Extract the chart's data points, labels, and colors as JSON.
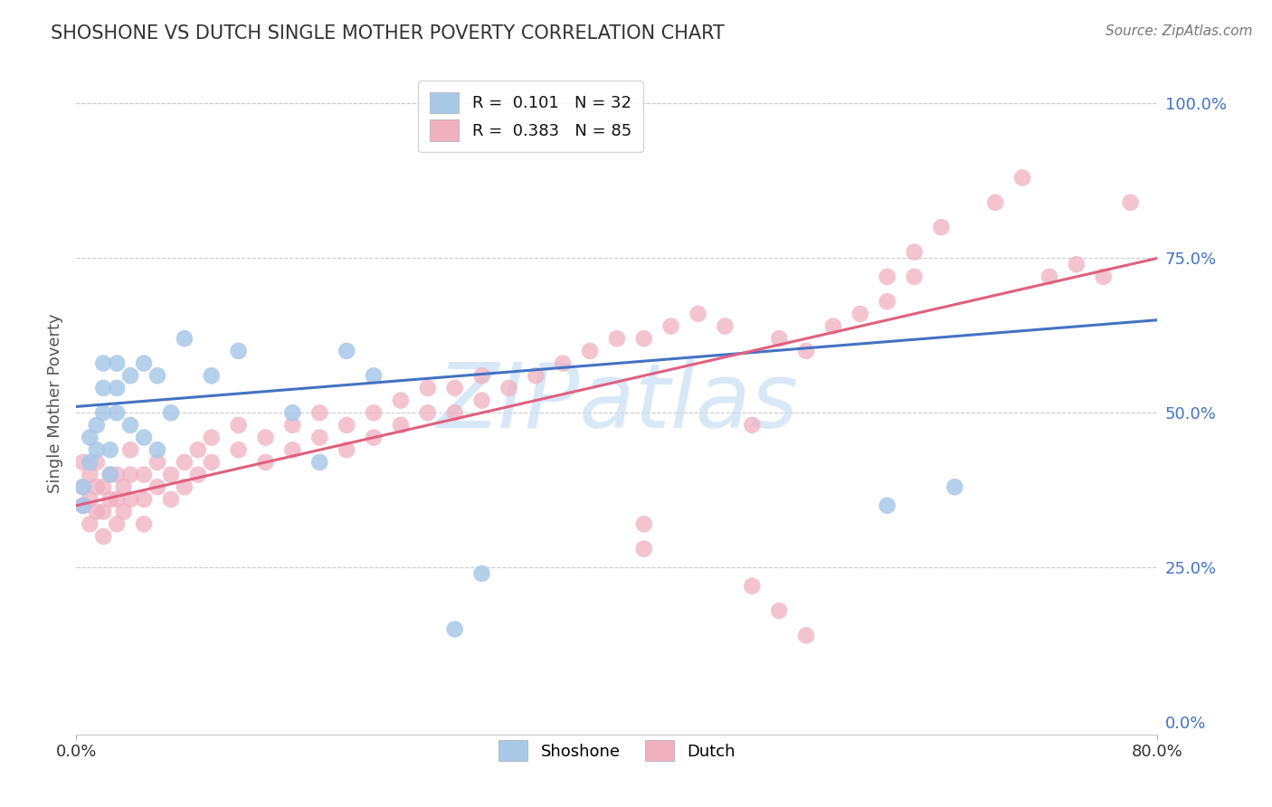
{
  "title": "SHOSHONE VS DUTCH SINGLE MOTHER POVERTY CORRELATION CHART",
  "source": "Source: ZipAtlas.com",
  "ylabel": "Single Mother Poverty",
  "xlim": [
    0.0,
    0.8
  ],
  "ylim": [
    -0.02,
    1.05
  ],
  "shoshone_color": "#a8c8e8",
  "dutch_color": "#f0b0c0",
  "shoshone_line_color": "#4472c4",
  "dutch_line_color": "#e06080",
  "shoshone_R": 0.101,
  "shoshone_N": 32,
  "dutch_R": 0.383,
  "dutch_N": 85,
  "watermark": "ZIPatlas",
  "watermark_color": "#c8dff5",
  "grid_color": "#cccccc",
  "shoshone_x": [
    0.005,
    0.005,
    0.01,
    0.01,
    0.015,
    0.015,
    0.02,
    0.02,
    0.02,
    0.025,
    0.025,
    0.03,
    0.03,
    0.03,
    0.04,
    0.04,
    0.05,
    0.05,
    0.06,
    0.06,
    0.07,
    0.08,
    0.1,
    0.12,
    0.16,
    0.2,
    0.22,
    0.6,
    0.65,
    0.3,
    0.28,
    0.18
  ],
  "shoshone_y": [
    0.35,
    0.38,
    0.42,
    0.46,
    0.44,
    0.48,
    0.5,
    0.54,
    0.58,
    0.4,
    0.44,
    0.5,
    0.54,
    0.58,
    0.48,
    0.56,
    0.46,
    0.58,
    0.44,
    0.56,
    0.5,
    0.62,
    0.56,
    0.6,
    0.5,
    0.6,
    0.56,
    0.35,
    0.38,
    0.24,
    0.15,
    0.42
  ],
  "dutch_x": [
    0.005,
    0.005,
    0.005,
    0.01,
    0.01,
    0.01,
    0.015,
    0.015,
    0.015,
    0.02,
    0.02,
    0.02,
    0.025,
    0.025,
    0.03,
    0.03,
    0.03,
    0.035,
    0.035,
    0.04,
    0.04,
    0.04,
    0.05,
    0.05,
    0.05,
    0.06,
    0.06,
    0.07,
    0.07,
    0.08,
    0.08,
    0.09,
    0.09,
    0.1,
    0.1,
    0.12,
    0.12,
    0.14,
    0.14,
    0.16,
    0.16,
    0.18,
    0.18,
    0.2,
    0.2,
    0.22,
    0.22,
    0.24,
    0.24,
    0.26,
    0.26,
    0.28,
    0.28,
    0.3,
    0.3,
    0.32,
    0.34,
    0.36,
    0.38,
    0.4,
    0.42,
    0.44,
    0.46,
    0.48,
    0.5,
    0.52,
    0.54,
    0.56,
    0.58,
    0.6,
    0.6,
    0.62,
    0.62,
    0.64,
    0.68,
    0.7,
    0.72,
    0.74,
    0.76,
    0.78,
    0.5,
    0.52,
    0.54,
    0.42,
    0.42
  ],
  "dutch_y": [
    0.35,
    0.38,
    0.42,
    0.32,
    0.36,
    0.4,
    0.34,
    0.38,
    0.42,
    0.3,
    0.34,
    0.38,
    0.36,
    0.4,
    0.32,
    0.36,
    0.4,
    0.34,
    0.38,
    0.36,
    0.4,
    0.44,
    0.32,
    0.36,
    0.4,
    0.38,
    0.42,
    0.36,
    0.4,
    0.38,
    0.42,
    0.4,
    0.44,
    0.42,
    0.46,
    0.44,
    0.48,
    0.42,
    0.46,
    0.44,
    0.48,
    0.46,
    0.5,
    0.44,
    0.48,
    0.46,
    0.5,
    0.48,
    0.52,
    0.5,
    0.54,
    0.5,
    0.54,
    0.52,
    0.56,
    0.54,
    0.56,
    0.58,
    0.6,
    0.62,
    0.62,
    0.64,
    0.66,
    0.64,
    0.48,
    0.62,
    0.6,
    0.64,
    0.66,
    0.68,
    0.72,
    0.72,
    0.76,
    0.8,
    0.84,
    0.88,
    0.72,
    0.74,
    0.72,
    0.84,
    0.22,
    0.18,
    0.14,
    0.28,
    0.32
  ],
  "shoshone_trendline_y0": 0.51,
  "shoshone_trendline_y1": 0.65,
  "dutch_trendline_y0": 0.35,
  "dutch_trendline_y1": 0.75
}
